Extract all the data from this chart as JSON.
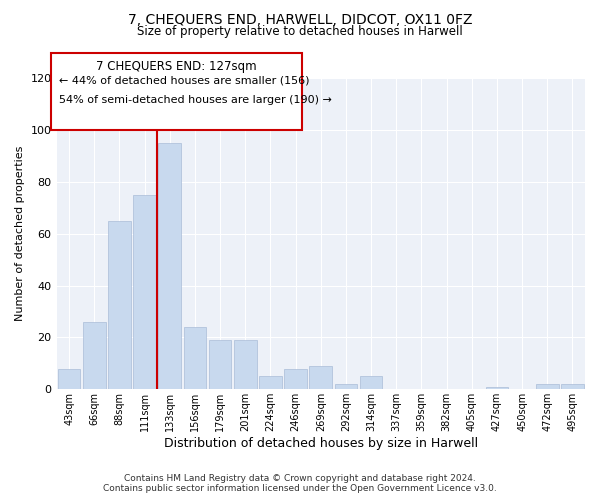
{
  "title": "7, CHEQUERS END, HARWELL, DIDCOT, OX11 0FZ",
  "subtitle": "Size of property relative to detached houses in Harwell",
  "xlabel": "Distribution of detached houses by size in Harwell",
  "ylabel": "Number of detached properties",
  "bar_color": "#c8d9ee",
  "bar_edge_color": "#aabdd8",
  "highlight_line_color": "#cc0000",
  "background_color": "#edf1f8",
  "categories": [
    "43sqm",
    "66sqm",
    "88sqm",
    "111sqm",
    "133sqm",
    "156sqm",
    "179sqm",
    "201sqm",
    "224sqm",
    "246sqm",
    "269sqm",
    "292sqm",
    "314sqm",
    "337sqm",
    "359sqm",
    "382sqm",
    "405sqm",
    "427sqm",
    "450sqm",
    "472sqm",
    "495sqm"
  ],
  "values": [
    8,
    26,
    65,
    75,
    95,
    24,
    19,
    19,
    5,
    8,
    9,
    2,
    5,
    0,
    0,
    0,
    0,
    1,
    0,
    2,
    2
  ],
  "ylim": [
    0,
    120
  ],
  "yticks": [
    0,
    20,
    40,
    60,
    80,
    100,
    120
  ],
  "vline_x": 3.5,
  "annotation_title": "7 CHEQUERS END: 127sqm",
  "annotation_line1": "← 44% of detached houses are smaller (156)",
  "annotation_line2": "54% of semi-detached houses are larger (190) →",
  "footer_line1": "Contains HM Land Registry data © Crown copyright and database right 2024.",
  "footer_line2": "Contains public sector information licensed under the Open Government Licence v3.0."
}
